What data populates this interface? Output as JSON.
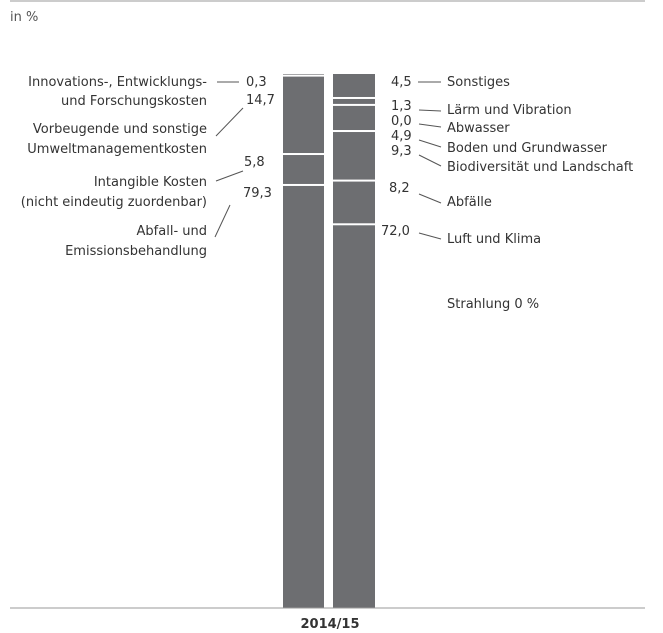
{
  "chart_data": {
    "type": "bar",
    "stacked": true,
    "unit_label": "in %",
    "category": "2014/15",
    "bar_color": "#6d6e71",
    "series": [
      {
        "segments": [
          {
            "value": 79.3,
            "value_label": "79,3",
            "label": [
              "Abfall- und",
              "Emissionsbehandlung"
            ]
          },
          {
            "value": 5.8,
            "value_label": "5,8",
            "label": [
              "Intangible Kosten",
              "(nicht eindeutig zuordenbar)"
            ]
          },
          {
            "value": 14.7,
            "value_label": "14,7",
            "label": [
              "Vorbeugende und sonstige",
              "Umweltmanagementkosten"
            ]
          },
          {
            "value": 0.3,
            "value_label": "0,3",
            "label": [
              "Innovations-, Entwicklungs-",
              "und Forschungskosten"
            ]
          }
        ]
      },
      {
        "segments": [
          {
            "value": 72.0,
            "value_label": "72,0",
            "label": [
              "Luft und Klima"
            ]
          },
          {
            "value": 8.2,
            "value_label": "8,2",
            "label": [
              "Abfälle"
            ]
          },
          {
            "value": 9.3,
            "value_label": "9,3",
            "label": [
              "Biodiversität und Landschaft"
            ]
          },
          {
            "value": 4.9,
            "value_label": "4,9",
            "label": [
              "Boden und Grundwasser"
            ]
          },
          {
            "value": 0.0,
            "value_label": "0,0",
            "label": [
              "Abwasser"
            ]
          },
          {
            "value": 1.3,
            "value_label": "1,3",
            "label": [
              "Lärm und Vibration"
            ]
          },
          {
            "value": 4.5,
            "value_label": "4,5",
            "label": [
              "Sonstiges"
            ]
          }
        ]
      }
    ],
    "note": "Strahlung 0 %"
  }
}
